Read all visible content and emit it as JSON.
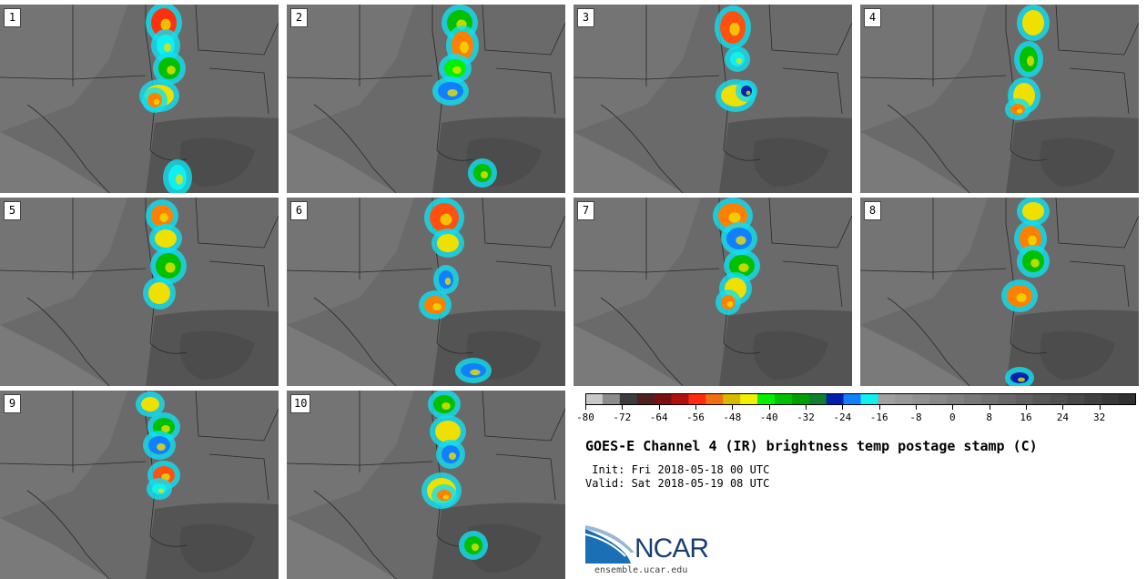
{
  "panels": [
    {
      "label": "1"
    },
    {
      "label": "2"
    },
    {
      "label": "3"
    },
    {
      "label": "4"
    },
    {
      "label": "5"
    },
    {
      "label": "6"
    },
    {
      "label": "7"
    },
    {
      "label": "8"
    },
    {
      "label": "9"
    },
    {
      "label": "10"
    }
  ],
  "colorbar": {
    "colors": [
      "#c8c8c8",
      "#8c8c8c",
      "#3c3c3c",
      "#4e2020",
      "#7a1010",
      "#b01010",
      "#ff2a10",
      "#f07010",
      "#d8b800",
      "#f0f000",
      "#00f000",
      "#00c000",
      "#00a000",
      "#108030",
      "#0020b0",
      "#1080ff",
      "#10f0f0",
      "#a0a0a0",
      "#989898",
      "#909090",
      "#888888",
      "#808080",
      "#787878",
      "#707070",
      "#686868",
      "#606060",
      "#585858",
      "#505050",
      "#484848",
      "#404040",
      "#383838",
      "#303030"
    ],
    "ticks": [
      -80,
      -72,
      -64,
      -56,
      -48,
      -40,
      -32,
      -24,
      -16,
      -8,
      0,
      8,
      16,
      24,
      32
    ],
    "range": [
      -80,
      40
    ]
  },
  "title": "GOES-E Channel 4 (IR) brightness temp postage stamp (C)",
  "init": " Init: Fri 2018-05-18 00 UTC",
  "valid": "Valid: Sat 2018-05-19 08 UTC",
  "logo_text": "NCAR",
  "logo_url": "ensemble.ucar.edu"
}
